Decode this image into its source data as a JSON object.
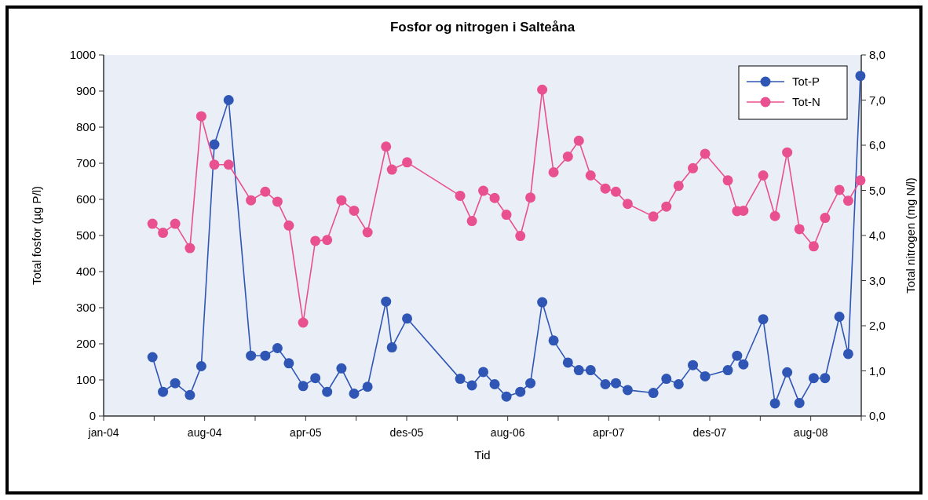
{
  "chart_data": {
    "type": "line",
    "title": "Fosfor og nitrogen i Salteåna",
    "xlabel": "Tid",
    "ylabel": "Total fosfor (µg P/l)",
    "y2label": "Total nitrogen (mg N/l)",
    "x": [
      "2004-04-26",
      "2004-05-21",
      "2004-06-19",
      "2004-07-24",
      "2004-08-20",
      "2004-09-20",
      "2004-10-24",
      "2004-12-16",
      "2005-01-19",
      "2005-02-17",
      "2005-03-16",
      "2005-04-19",
      "2005-05-18",
      "2005-06-15",
      "2005-07-19",
      "2005-08-18",
      "2005-09-19",
      "2005-11-02",
      "2005-11-16",
      "2005-12-22",
      "2006-04-27",
      "2006-05-25",
      "2006-06-21",
      "2006-07-18",
      "2006-08-15",
      "2006-09-17",
      "2006-10-11",
      "2006-11-08",
      "2006-12-05",
      "2007-01-08",
      "2007-02-03",
      "2007-03-03",
      "2007-04-07",
      "2007-05-02",
      "2007-05-30",
      "2007-07-30",
      "2007-08-30",
      "2007-09-28",
      "2007-11-01",
      "2007-11-30",
      "2008-01-23",
      "2008-02-14",
      "2008-02-29",
      "2008-04-16",
      "2008-05-14",
      "2008-06-12",
      "2008-07-11",
      "2008-08-14",
      "2008-09-10",
      "2008-10-14",
      "2008-11-04",
      "2008-12-03"
    ],
    "series": [
      {
        "name": "Tot-P",
        "color": "#2f55b5",
        "values": [
          163,
          67,
          91,
          58,
          138,
          752,
          875,
          167,
          167,
          188,
          146,
          83,
          105,
          67,
          132,
          62,
          81,
          317,
          190,
          270,
          103,
          85,
          122,
          88,
          54,
          67,
          91,
          315,
          209,
          148,
          127,
          127,
          88,
          91,
          72,
          64,
          103,
          88,
          141,
          110,
          127,
          167,
          143,
          268,
          35,
          121,
          36,
          105,
          105,
          275,
          172,
          942
        ]
      },
      {
        "name": "Tot-N",
        "color": "#e8508f",
        "axis": "y2",
        "values": [
          4.26,
          4.06,
          4.26,
          3.72,
          6.64,
          5.57,
          5.57,
          4.78,
          4.97,
          4.75,
          4.22,
          2.07,
          3.88,
          3.9,
          4.78,
          4.55,
          4.07,
          5.97,
          5.46,
          5.62,
          4.88,
          4.32,
          4.99,
          4.83,
          4.46,
          3.99,
          4.84,
          7.23,
          5.4,
          5.75,
          6.1,
          5.33,
          5.04,
          4.97,
          4.7,
          4.42,
          4.64,
          5.1,
          5.49,
          5.81,
          5.22,
          4.54,
          4.55,
          5.33,
          4.43,
          5.84,
          4.14,
          3.76,
          4.39,
          5.01,
          4.77,
          5.22
        ]
      }
    ],
    "xlim": [
      "2004-01-01",
      "2008-12-05"
    ],
    "xticks": [
      {
        "value": "2004-01-01",
        "label": "jan-04"
      },
      {
        "value": "2004-04-30",
        "label": null
      },
      {
        "value": "2004-08-28",
        "label": "aug-04"
      },
      {
        "value": "2004-12-26",
        "label": null
      },
      {
        "value": "2005-04-25",
        "label": "apr-05"
      },
      {
        "value": "2005-08-23",
        "label": null
      },
      {
        "value": "2005-12-21",
        "label": "des-05"
      },
      {
        "value": "2006-04-20",
        "label": null
      },
      {
        "value": "2006-08-18",
        "label": "aug-06"
      },
      {
        "value": "2006-12-16",
        "label": null
      },
      {
        "value": "2007-04-15",
        "label": "apr-07"
      },
      {
        "value": "2007-08-13",
        "label": null
      },
      {
        "value": "2007-12-11",
        "label": "des-07"
      },
      {
        "value": "2008-04-09",
        "label": null
      },
      {
        "value": "2008-08-07",
        "label": "aug-08"
      },
      {
        "value": "2008-12-05",
        "label": null
      }
    ],
    "ylim": [
      0,
      1000
    ],
    "yticks": [
      0,
      100,
      200,
      300,
      400,
      500,
      600,
      700,
      800,
      900,
      1000
    ],
    "y2lim": [
      0,
      8
    ],
    "y2ticks": [
      {
        "value": 0,
        "label": "0,0"
      },
      {
        "value": 1,
        "label": "1,0"
      },
      {
        "value": 2,
        "label": "2,0"
      },
      {
        "value": 3,
        "label": "3,0"
      },
      {
        "value": 4,
        "label": "4,0"
      },
      {
        "value": 5,
        "label": "5,0"
      },
      {
        "value": 6,
        "label": "6,0"
      },
      {
        "value": 7,
        "label": "7,0"
      },
      {
        "value": 8,
        "label": "8,0"
      }
    ],
    "legend": "top right",
    "marker": "circle",
    "grid": false
  }
}
